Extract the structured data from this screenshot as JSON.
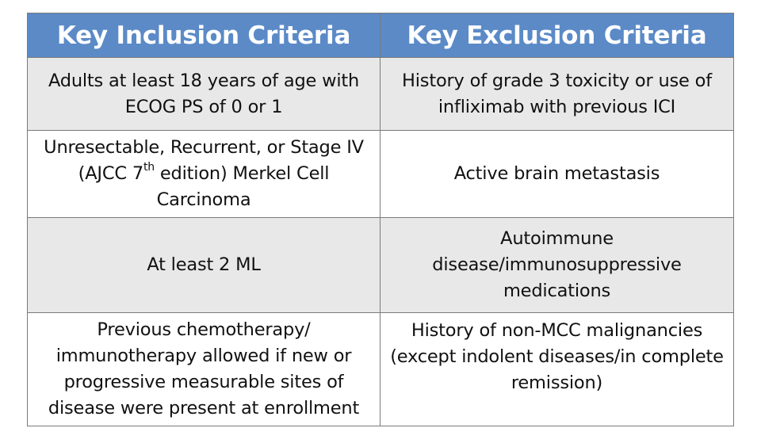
{
  "table": {
    "headers": {
      "inclusion": "Key Inclusion Criteria",
      "exclusion": "Key Exclusion Criteria"
    },
    "rows": [
      {
        "inclusion": "Adults at least 18 years of age with ECOG PS of 0 or 1",
        "exclusion": "History of grade 3 toxicity or use of infliximab with previous ICI"
      },
      {
        "inclusion_before": "Unresectable, Recurrent, or Stage IV (AJCC 7",
        "inclusion_sup": "th",
        "inclusion_after": " edition) Merkel Cell Carcinoma",
        "exclusion": "Active brain metastasis"
      },
      {
        "inclusion": "At least 2 ML",
        "exclusion": "Autoimmune disease/immunosuppressive medications"
      },
      {
        "inclusion": "Previous chemotherapy/ immunotherapy allowed if new or progressive measurable sites of disease were present at enrollment",
        "exclusion": "History of non-MCC malignancies (except indolent diseases/in complete remission)"
      }
    ]
  },
  "colors": {
    "header_bg": "#5b8ac7",
    "header_text": "#ffffff",
    "shaded_row_bg": "#e8e8e8",
    "plain_row_bg": "#ffffff",
    "border": "#7a7a7a"
  }
}
